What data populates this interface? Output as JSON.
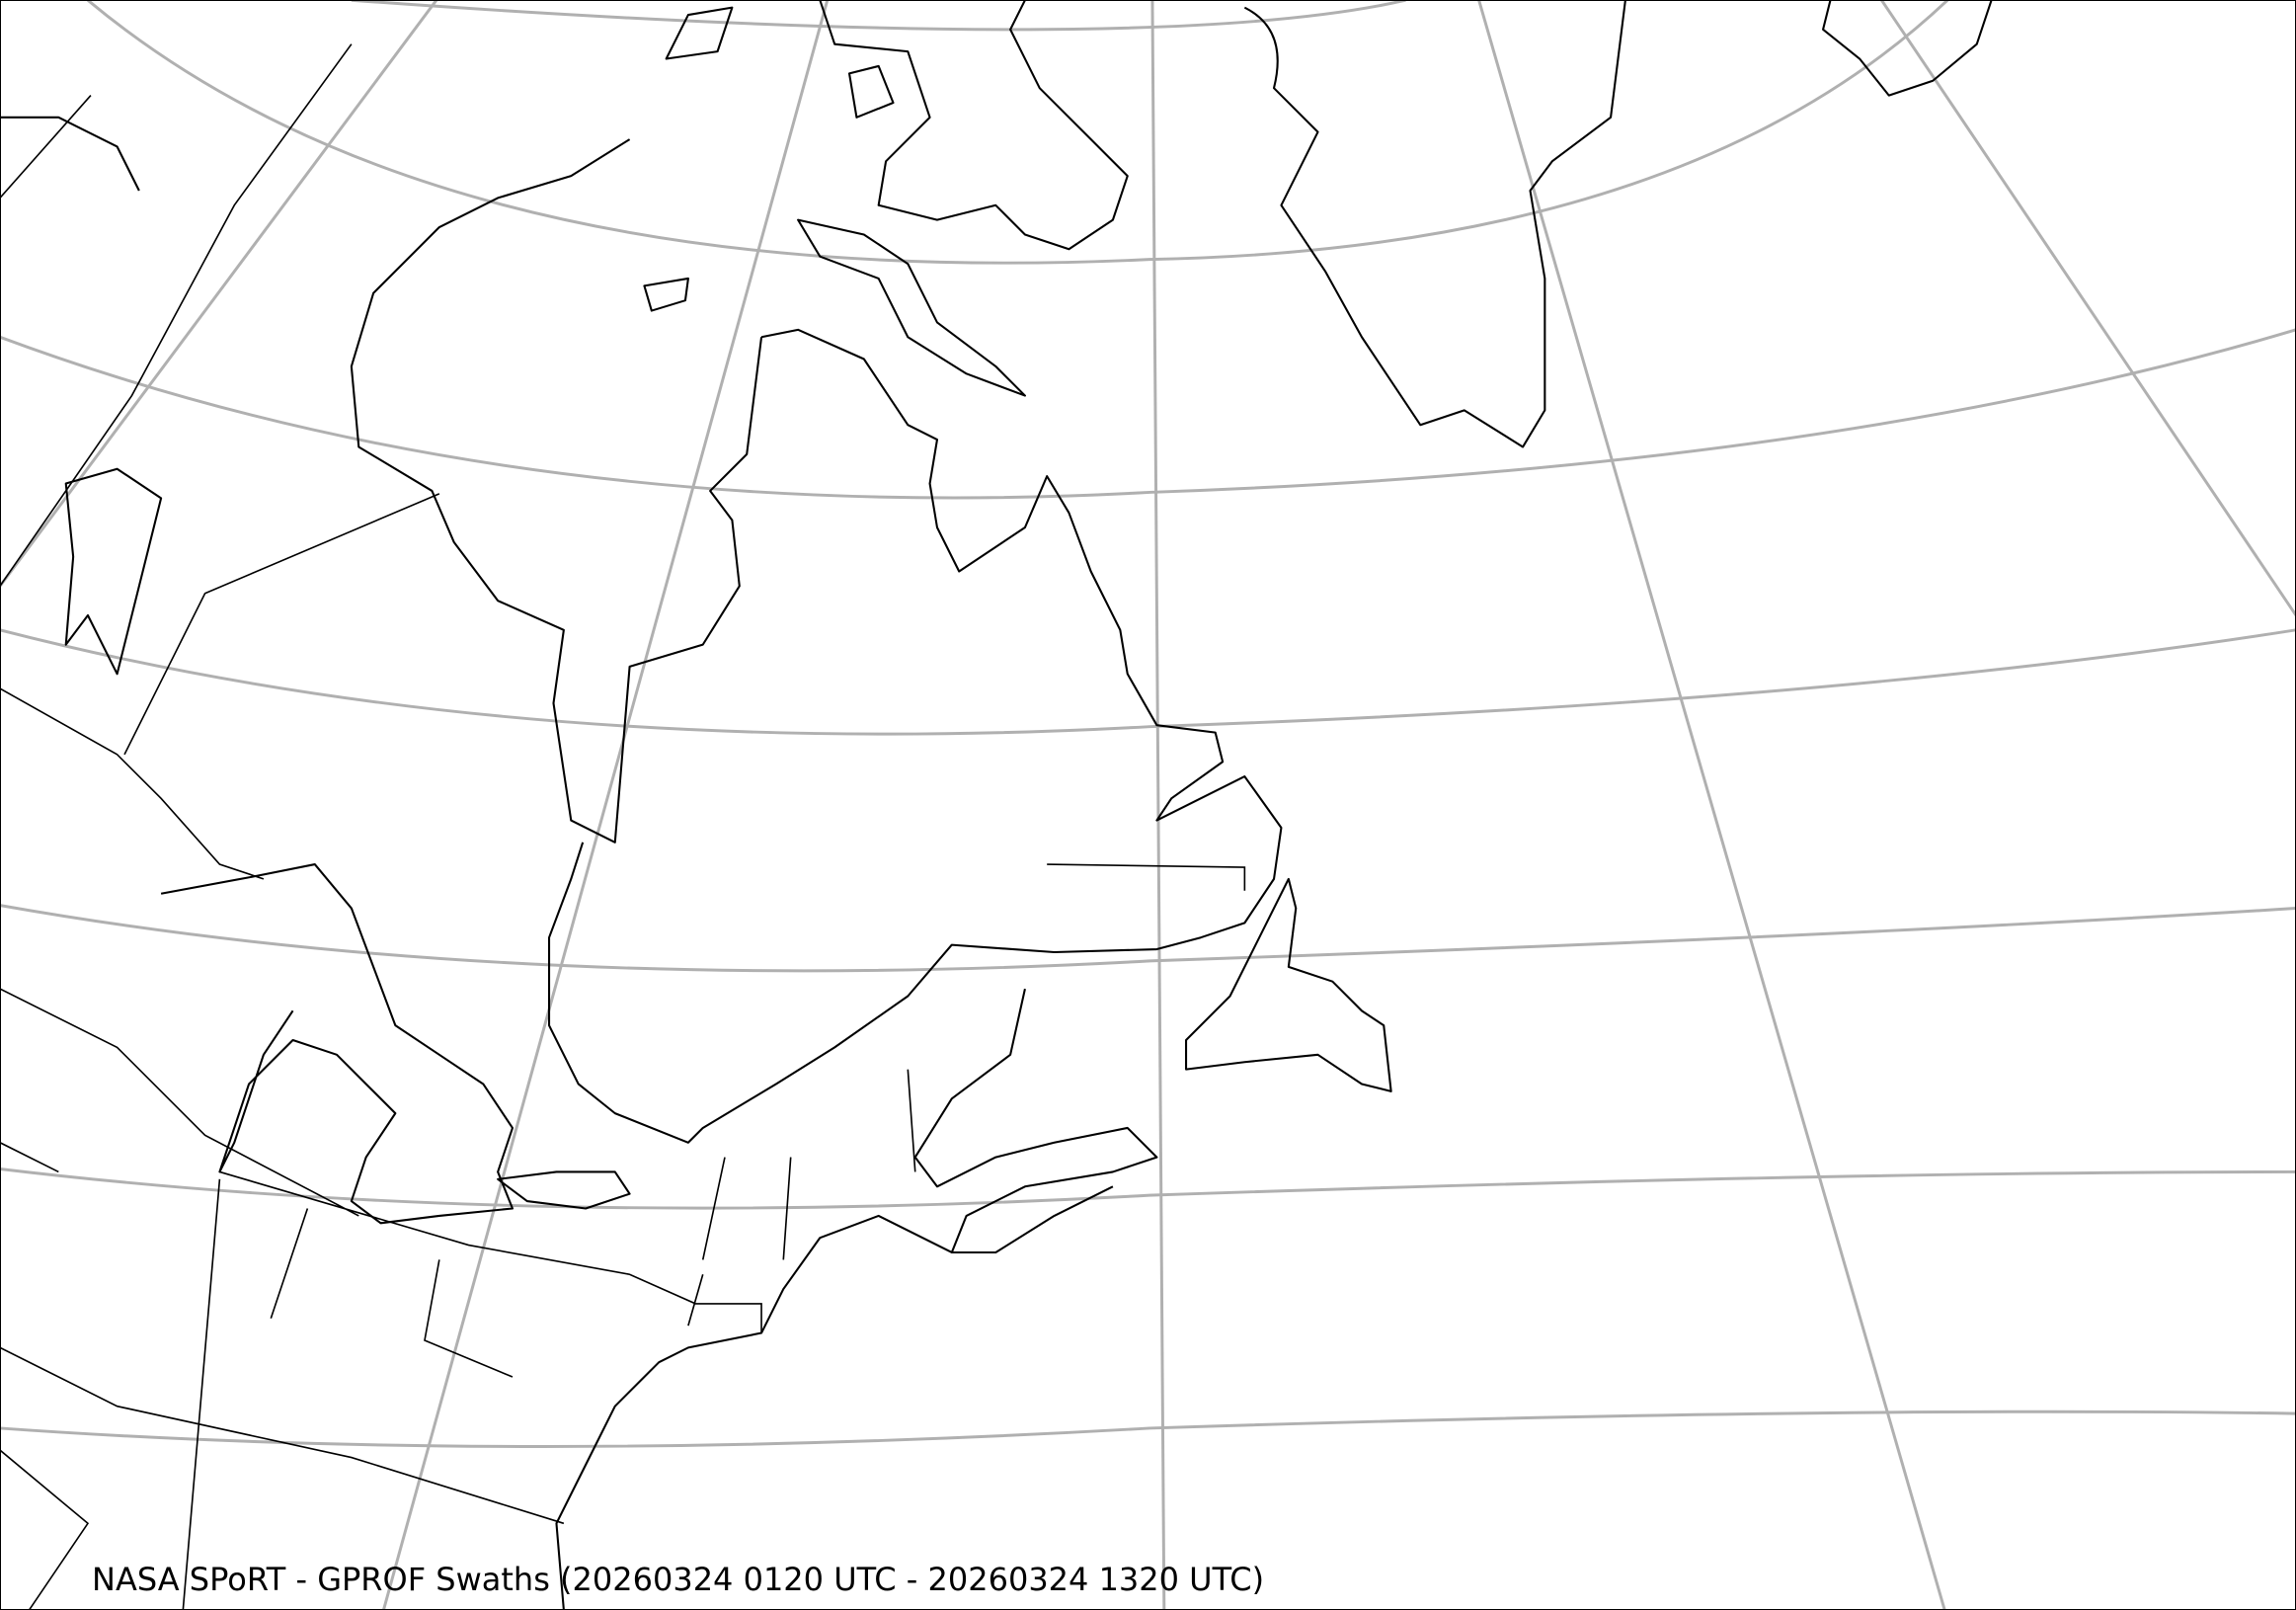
{
  "title": "NASA SPoRT - GPROF Swaths (20260324 0120 UTC - 20260324 1320 UTC)",
  "map": {
    "projection": "conic",
    "region": "Northeastern North America and Greenland",
    "graticule_color": "#b0b0b0",
    "coastline_color": "#000000",
    "background_color": "#ffffff"
  }
}
